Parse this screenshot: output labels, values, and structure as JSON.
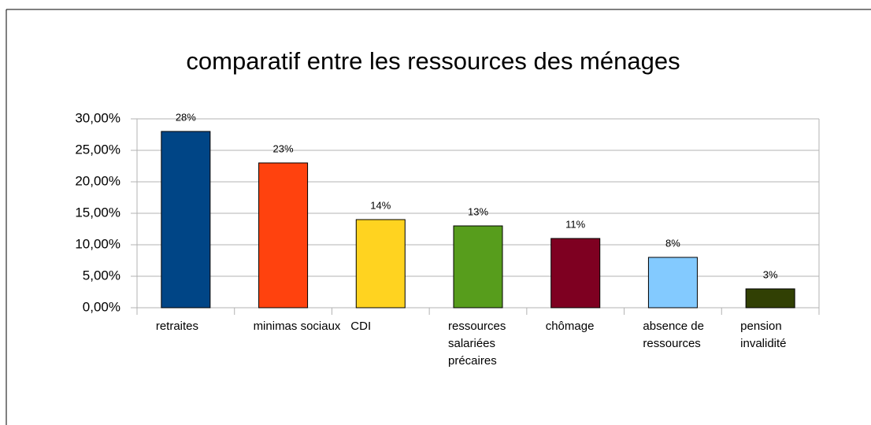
{
  "chart_data": {
    "type": "bar",
    "title": "comparatif entre les ressources des ménages",
    "categories": [
      "retraites",
      "minimas sociaux",
      "CDI",
      "ressources salariées précaires",
      "chômage",
      "absence de ressources",
      "pension invalidité"
    ],
    "values": [
      28,
      23,
      14,
      13,
      11,
      8,
      3
    ],
    "value_labels": [
      "28%",
      "23%",
      "14%",
      "13%",
      "11%",
      "8%",
      "3%"
    ],
    "colors": [
      "#004586",
      "#ff420e",
      "#ffd320",
      "#579d1c",
      "#7e0021",
      "#83caff",
      "#314004"
    ],
    "ylim": [
      0,
      30
    ],
    "yticks": [
      {
        "value": 0,
        "label": "0,00%"
      },
      {
        "value": 5,
        "label": "5,00%"
      },
      {
        "value": 10,
        "label": "10,00%"
      },
      {
        "value": 15,
        "label": "15,00%"
      },
      {
        "value": 20,
        "label": "20,00%"
      },
      {
        "value": 25,
        "label": "25,00%"
      },
      {
        "value": 30,
        "label": "30,00%"
      }
    ],
    "grid": true
  }
}
